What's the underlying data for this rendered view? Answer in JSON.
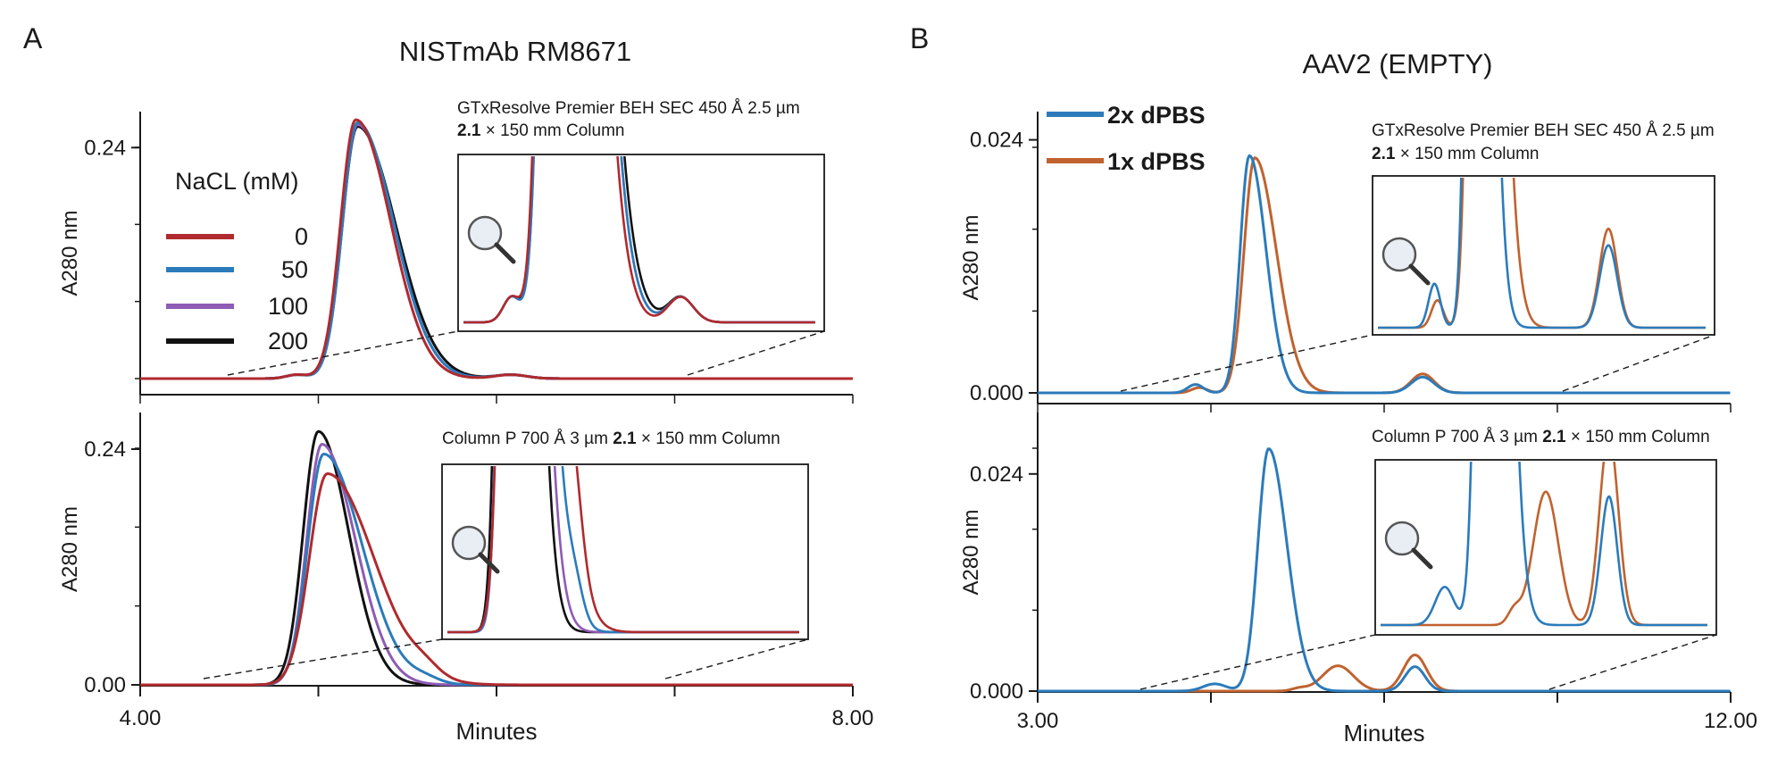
{
  "chart_data": [
    {
      "panel": "A",
      "title": "NISTmAb RM8671",
      "xlabel": "Minutes",
      "type": "line",
      "legend": {
        "title": "NaCL (mM)",
        "placement": "top-left",
        "entries": [
          {
            "label": "0",
            "color": "#b02a2e"
          },
          {
            "label": "50",
            "color": "#2b7bbb"
          },
          {
            "label": "100",
            "color": "#8e5bb5"
          },
          {
            "label": "200",
            "color": "#111111"
          }
        ]
      },
      "xlim": [
        4.0,
        8.0
      ],
      "x_tick_labels": [
        "4.00",
        "8.00"
      ],
      "subplots": [
        {
          "name": "top",
          "ylabel": "A280 nm",
          "ylim": [
            0.0,
            0.27
          ],
          "y_tick_labels": [
            {
              "value": 0.24,
              "label": "0.24"
            }
          ],
          "column_label": {
            "pre": "GTxResolve Premier BEH SEC 450 Å 2.5 µm",
            "bold": "2.1",
            "post": " × 150 mm Column"
          },
          "zoom_range": [
            4.5,
            7.1
          ],
          "series": [
            {
              "name": "0",
              "peaks": [
                {
                  "center": 5.21,
                  "height": 0.269,
                  "width": 0.085,
                  "tail": 2.3
                },
                {
                  "center": 4.88,
                  "height": 0.004,
                  "width": 0.06
                },
                {
                  "center": 6.08,
                  "height": 0.004,
                  "width": 0.09
                }
              ]
            },
            {
              "name": "50",
              "peaks": [
                {
                  "center": 5.22,
                  "height": 0.266,
                  "width": 0.085,
                  "tail": 2.4
                },
                {
                  "center": 4.88,
                  "height": 0.004,
                  "width": 0.06
                },
                {
                  "center": 6.08,
                  "height": 0.004,
                  "width": 0.09
                }
              ]
            },
            {
              "name": "100",
              "peaks": [
                {
                  "center": 5.22,
                  "height": 0.264,
                  "width": 0.085,
                  "tail": 2.4
                },
                {
                  "center": 4.88,
                  "height": 0.004,
                  "width": 0.06
                },
                {
                  "center": 6.08,
                  "height": 0.004,
                  "width": 0.09
                }
              ]
            },
            {
              "name": "200",
              "peaks": [
                {
                  "center": 5.22,
                  "height": 0.262,
                  "width": 0.086,
                  "tail": 2.5
                },
                {
                  "center": 4.88,
                  "height": 0.004,
                  "width": 0.06
                },
                {
                  "center": 6.08,
                  "height": 0.004,
                  "width": 0.09
                }
              ]
            }
          ]
        },
        {
          "name": "bottom",
          "ylabel": "A280 nm",
          "ylim": [
            0.0,
            0.27
          ],
          "y_tick_labels": [
            {
              "value": 0.0,
              "label": "0.00"
            },
            {
              "value": 0.24,
              "label": "0.24"
            }
          ],
          "column_label": {
            "pre": "Column P 700 Å 3 µm ",
            "bold": "2.1",
            "post": " × 150 mm Column"
          },
          "zoom_range": [
            4.35,
            7.8
          ],
          "series": [
            {
              "name": "0",
              "peaks": [
                {
                  "center": 5.05,
                  "height": 0.215,
                  "width": 0.1,
                  "tail": 2.6
                },
                {
                  "center": 5.6,
                  "height": 0.008,
                  "width": 0.08
                }
              ]
            },
            {
              "name": "50",
              "peaks": [
                {
                  "center": 5.03,
                  "height": 0.235,
                  "width": 0.09,
                  "tail": 2.4
                },
                {
                  "center": 5.6,
                  "height": 0.005,
                  "width": 0.08
                }
              ]
            },
            {
              "name": "100",
              "peaks": [
                {
                  "center": 5.02,
                  "height": 0.245,
                  "width": 0.085,
                  "tail": 2.2
                }
              ]
            },
            {
              "name": "200",
              "peaks": [
                {
                  "center": 5.0,
                  "height": 0.258,
                  "width": 0.085,
                  "tail": 2.0
                }
              ]
            }
          ]
        }
      ]
    },
    {
      "panel": "B",
      "title": "AAV2 (EMPTY)",
      "xlabel": "Minutes",
      "type": "line",
      "legend": {
        "placement": "top-left",
        "entries": [
          {
            "label": "2x dPBS",
            "color": "#2b7bbb"
          },
          {
            "label": "1x dPBS",
            "color": "#c0622f"
          }
        ]
      },
      "xlim": [
        3.0,
        12.0
      ],
      "x_tick_labels": [
        "3.00",
        "12.00"
      ],
      "subplots": [
        {
          "name": "top",
          "ylabel": "A280 nm",
          "ylim": [
            0.0,
            0.026
          ],
          "y_tick_labels": [
            {
              "value": 0.0,
              "label": "0.000"
            },
            {
              "value": 0.024,
              "label": "0.024"
            }
          ],
          "column_label": {
            "pre": "GTxResolve Premier BEH SEC 450 Å 2.5 µm",
            "bold": "2.1",
            "post": " × 150 mm Column"
          },
          "zoom_range": [
            4.0,
            9.8
          ],
          "series": [
            {
              "name": "2x dPBS",
              "peaks": [
                {
                  "center": 5.75,
                  "height": 0.0225,
                  "width": 0.12,
                  "tail": 1.8
                },
                {
                  "center": 5.05,
                  "height": 0.0008,
                  "width": 0.1
                },
                {
                  "center": 8.0,
                  "height": 0.0015,
                  "width": 0.15
                }
              ]
            },
            {
              "name": "1x dPBS",
              "peaks": [
                {
                  "center": 5.82,
                  "height": 0.0223,
                  "width": 0.14,
                  "tail": 2.0
                },
                {
                  "center": 5.1,
                  "height": 0.0005,
                  "width": 0.1
                },
                {
                  "center": 8.0,
                  "height": 0.0018,
                  "width": 0.15
                }
              ]
            }
          ]
        },
        {
          "name": "bottom",
          "ylabel": "A280 nm",
          "ylim": [
            0.0,
            0.03
          ],
          "y_tick_labels": [
            {
              "value": 0.0,
              "label": "0.000"
            },
            {
              "value": 0.024,
              "label": "0.024"
            }
          ],
          "column_label": {
            "pre": "Column P 700 Å 3 µm ",
            "bold": "2.1",
            "post": " × 150 mm Column"
          },
          "zoom_range": [
            4.2,
            9.6
          ],
          "series": [
            {
              "name": "2x dPBS",
              "peaks": [
                {
                  "center": 6.0,
                  "height": 0.0268,
                  "width": 0.14,
                  "tail": 1.7
                },
                {
                  "center": 5.3,
                  "height": 0.0008,
                  "width": 0.15
                },
                {
                  "center": 7.9,
                  "height": 0.0027,
                  "width": 0.13
                }
              ]
            },
            {
              "name": "1x dPBS",
              "peaks": [
                {
                  "center": 6.9,
                  "height": 0.0028,
                  "width": 0.2,
                  "tail": 1.0
                },
                {
                  "center": 7.9,
                  "height": 0.004,
                  "width": 0.15
                },
                {
                  "center": 6.4,
                  "height": 0.0003,
                  "width": 0.1
                }
              ]
            }
          ]
        }
      ]
    }
  ],
  "labels": {
    "panel_a": "A",
    "panel_b": "B"
  }
}
